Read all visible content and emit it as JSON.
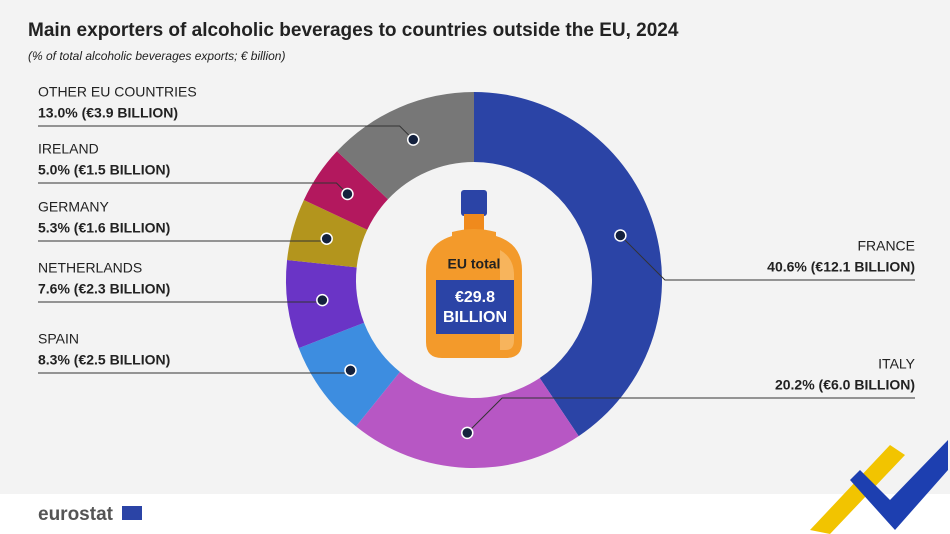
{
  "chart_data": {
    "type": "donut",
    "title": "Main exporters of alcoholic beverages to countries outside the EU, 2024",
    "subtitle": "(% of total alcoholic beverages exports; € billion)",
    "center_label": "EU total",
    "total": "€29.8",
    "total_unit": "BILLION",
    "categories": [
      "FRANCE",
      "ITALY",
      "SPAIN",
      "NETHERLANDS",
      "GERMANY",
      "IRELAND",
      "OTHER EU COUNTRIES"
    ],
    "values": [
      40.6,
      20.2,
      8.3,
      7.6,
      5.3,
      5.0,
      13.0
    ],
    "value_labels": [
      "40.6% (€12.1 BILLION)",
      "20.2% (€6.0 BILLION)",
      "8.3% (€2.5 BILLION)",
      "7.6% (€2.3 BILLION)",
      "5.3% (€1.6 BILLION)",
      "5.0% (€1.5 BILLION)",
      "13.0% (€3.9 BILLION)"
    ],
    "colors": [
      "#2b44a6",
      "#b757c4",
      "#3d8de0",
      "#6a34c6",
      "#b3951d",
      "#b3185e",
      "#777777"
    ],
    "source": "eurostat"
  }
}
